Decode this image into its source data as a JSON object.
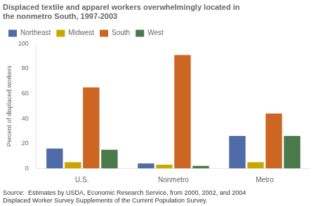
{
  "chart_data": {
    "type": "bar",
    "title": [
      "Displaced textile and apparel workers overwhelmingly located in",
      "the nonmetro South, 1997-2003"
    ],
    "ylabel": "Percent of displaced workers",
    "categories": [
      "U.S.",
      "Nonmetro",
      "Metro"
    ],
    "series": [
      {
        "name": "Northeast",
        "color": "#4F6CA8",
        "values": [
          16,
          4,
          26
        ]
      },
      {
        "name": "Midwest",
        "color": "#C8A800",
        "values": [
          5,
          3,
          5
        ]
      },
      {
        "name": "South",
        "color": "#CC6622",
        "values": [
          65,
          91,
          44
        ]
      },
      {
        "name": "West",
        "color": "#4A7A4A",
        "values": [
          15,
          2,
          26
        ]
      }
    ],
    "ylim": [
      0,
      100
    ],
    "yticks": [
      0,
      20,
      40,
      60,
      80,
      100
    ],
    "grid": false,
    "legend": "upper left",
    "annotations": [
      "Source:  Estimates by USDA, Economic Research Service, from 2000, 2002, and 2004\nDisplaced Worker Survey Supplements of the Current Population Survey."
    ]
  }
}
